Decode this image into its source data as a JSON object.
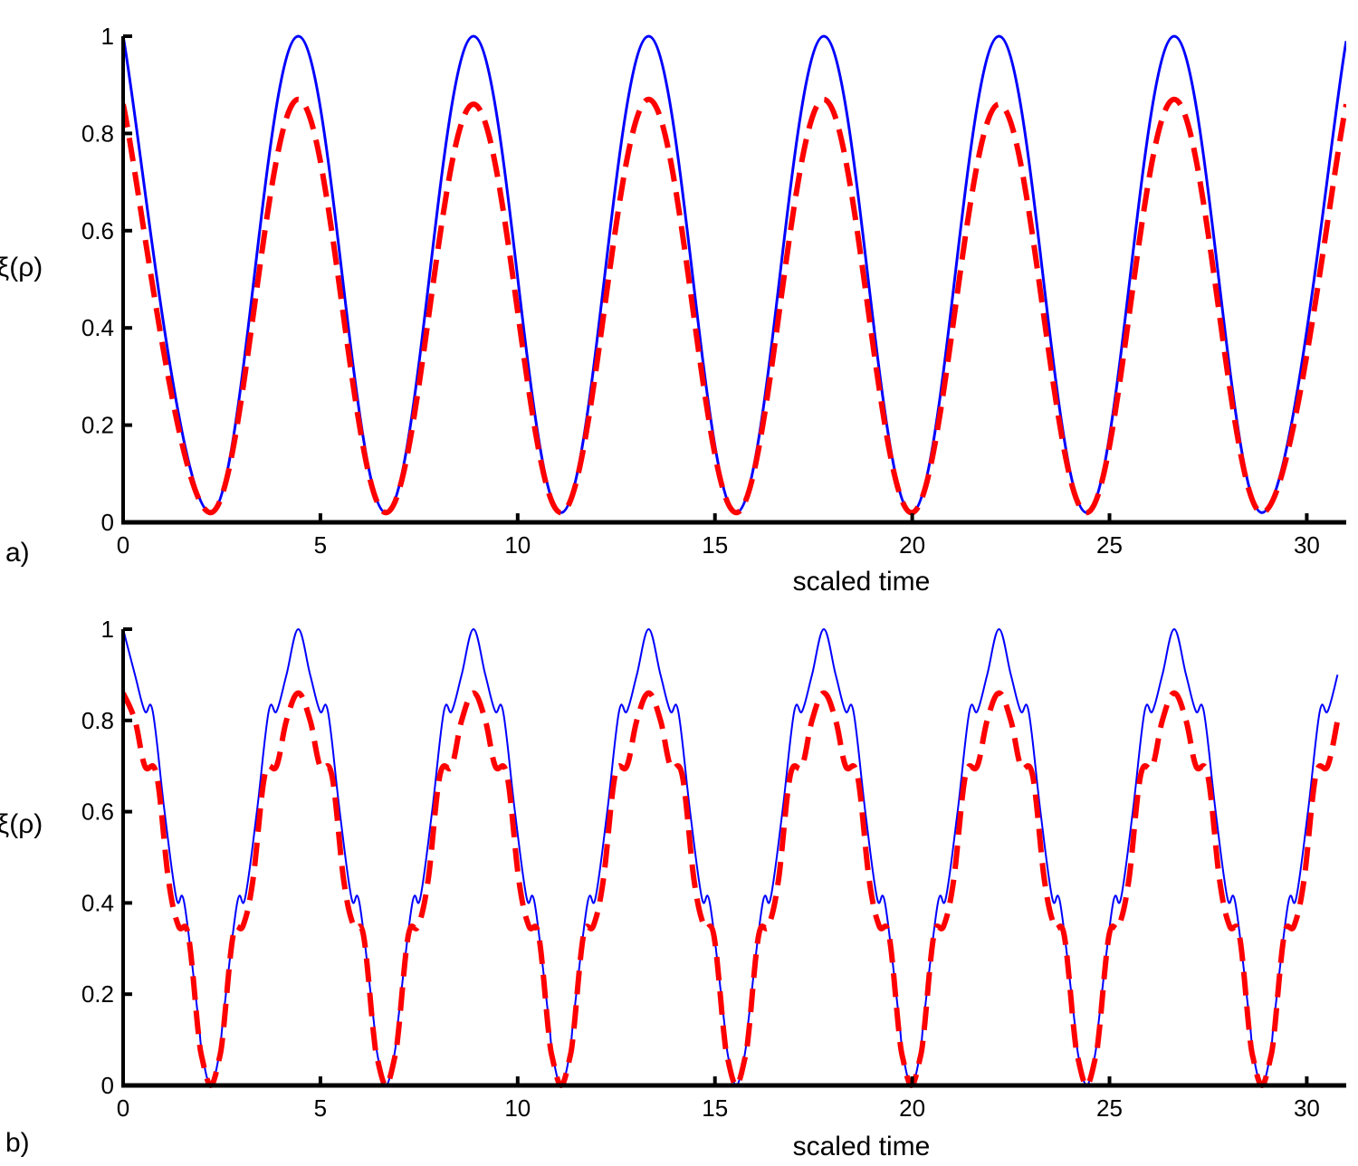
{
  "chart_data": [
    {
      "type": "line",
      "panel_label": "a)",
      "xlabel": "scaled time",
      "ylabel": "ξ(ρ)",
      "xlim": [
        0,
        31
      ],
      "ylim": [
        0,
        1
      ],
      "xticks": [
        "0",
        "5",
        "10",
        "15",
        "20",
        "25",
        "30"
      ],
      "yticks": [
        "0",
        "0.2",
        "0.4",
        "0.6",
        "0.8",
        "1"
      ],
      "grid": false,
      "series": [
        {
          "style": "solid",
          "color": "#0000ff",
          "points": [
            [
              0,
              1
            ],
            [
              2.22,
              0.02
            ],
            [
              4.44,
              1
            ],
            [
              6.66,
              0.02
            ],
            [
              8.88,
              1
            ],
            [
              11.1,
              0.02
            ],
            [
              13.32,
              1
            ],
            [
              15.54,
              0.02
            ],
            [
              17.76,
              1
            ],
            [
              19.98,
              0.02
            ],
            [
              22.2,
              1
            ],
            [
              24.42,
              0.02
            ],
            [
              26.64,
              1
            ],
            [
              28.86,
              0.02
            ],
            [
              31,
              0.99
            ]
          ]
        },
        {
          "style": "dashed",
          "color": "#ff0000",
          "points": [
            [
              0,
              0.86
            ],
            [
              2.22,
              0.02
            ],
            [
              4.44,
              0.87
            ],
            [
              6.66,
              0.02
            ],
            [
              8.88,
              0.86
            ],
            [
              11.1,
              0.02
            ],
            [
              13.32,
              0.87
            ],
            [
              15.54,
              0.02
            ],
            [
              17.76,
              0.87
            ],
            [
              19.98,
              0.02
            ],
            [
              22.2,
              0.86
            ],
            [
              24.42,
              0.02
            ],
            [
              26.64,
              0.87
            ],
            [
              28.86,
              0.02
            ],
            [
              31,
              0.86
            ]
          ]
        }
      ]
    },
    {
      "type": "line",
      "panel_label": "b)",
      "xlabel": "scaled time",
      "ylabel": "ξ(ρ)",
      "xlim": [
        0,
        31
      ],
      "ylim": [
        0,
        1
      ],
      "xticks": [
        "0",
        "5",
        "10",
        "15",
        "20",
        "25",
        "30"
      ],
      "yticks": [
        "0",
        "0.2",
        "0.4",
        "0.6",
        "0.8",
        "1"
      ],
      "grid": false,
      "series": [
        {
          "style": "solid",
          "color": "#0000ff",
          "period": 4.44,
          "points": [
            [
              0,
              1
            ],
            [
              0.3,
              0.9
            ],
            [
              0.55,
              0.82
            ],
            [
              0.75,
              0.82
            ],
            [
              1.05,
              0.6
            ],
            [
              1.35,
              0.41
            ],
            [
              1.55,
              0.4
            ],
            [
              1.9,
              0.15
            ],
            [
              2.0,
              0.07
            ],
            [
              2.22,
              0.0
            ],
            [
              2.44,
              0.07
            ],
            [
              2.54,
              0.15
            ],
            [
              2.89,
              0.4
            ],
            [
              3.09,
              0.41
            ],
            [
              3.39,
              0.6
            ],
            [
              3.69,
              0.82
            ],
            [
              3.89,
              0.82
            ],
            [
              4.14,
              0.9
            ],
            [
              4.44,
              1
            ]
          ]
        },
        {
          "style": "dashed",
          "color": "#ff0000",
          "period": 4.44,
          "points": [
            [
              0,
              0.86
            ],
            [
              0.3,
              0.8
            ],
            [
              0.55,
              0.7
            ],
            [
              0.85,
              0.68
            ],
            [
              1.15,
              0.45
            ],
            [
              1.4,
              0.35
            ],
            [
              1.65,
              0.33
            ],
            [
              1.9,
              0.12
            ],
            [
              2.0,
              0.06
            ],
            [
              2.22,
              0.0
            ],
            [
              2.44,
              0.06
            ],
            [
              2.54,
              0.12
            ],
            [
              2.79,
              0.33
            ],
            [
              3.04,
              0.35
            ],
            [
              3.29,
              0.45
            ],
            [
              3.59,
              0.68
            ],
            [
              3.89,
              0.7
            ],
            [
              4.14,
              0.8
            ],
            [
              4.44,
              0.86
            ]
          ]
        }
      ]
    }
  ]
}
